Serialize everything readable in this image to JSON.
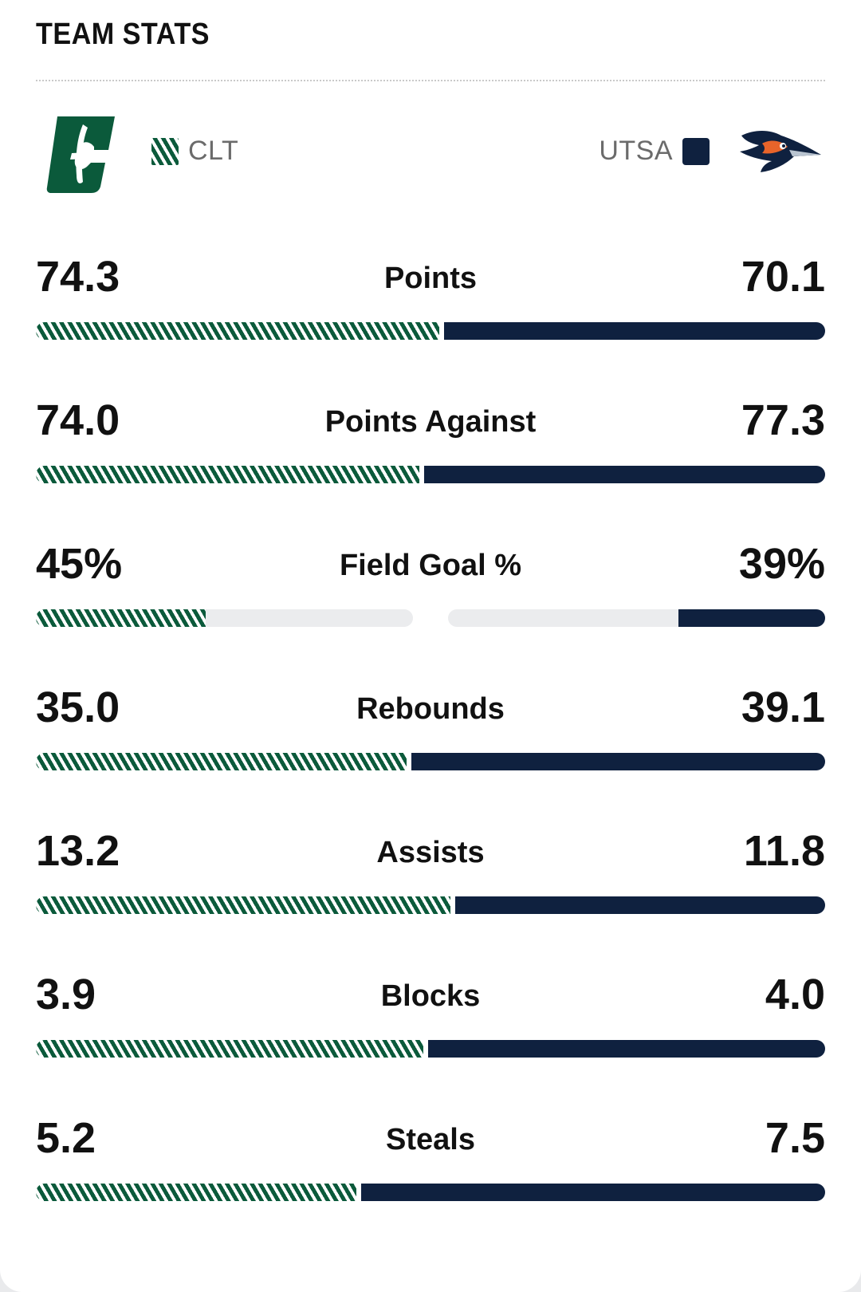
{
  "header": {
    "title": "TEAM STATS"
  },
  "teams": {
    "left": {
      "abbr": "CLT",
      "logo": "charlotte-c-logo",
      "color": "#0b5a3b"
    },
    "right": {
      "abbr": "UTSA",
      "logo": "roadrunner-logo",
      "color": "#0f213f"
    }
  },
  "stats": [
    {
      "label": "Points",
      "left": "74.3",
      "right": "70.1",
      "left_value": 74.3,
      "right_value": 70.1,
      "type": "split"
    },
    {
      "label": "Points Against",
      "left": "74.0",
      "right": "77.3",
      "left_value": 74.0,
      "right_value": 77.3,
      "type": "split"
    },
    {
      "label": "Field Goal %",
      "left": "45%",
      "right": "39%",
      "left_value": 45,
      "right_value": 39,
      "type": "percent"
    },
    {
      "label": "Rebounds",
      "left": "35.0",
      "right": "39.1",
      "left_value": 35.0,
      "right_value": 39.1,
      "type": "split"
    },
    {
      "label": "Assists",
      "left": "13.2",
      "right": "11.8",
      "left_value": 13.2,
      "right_value": 11.8,
      "type": "split"
    },
    {
      "label": "Blocks",
      "left": "3.9",
      "right": "4.0",
      "left_value": 3.9,
      "right_value": 4.0,
      "type": "split"
    },
    {
      "label": "Steals",
      "left": "5.2",
      "right": "7.5",
      "left_value": 5.2,
      "right_value": 7.5,
      "type": "split"
    }
  ]
}
